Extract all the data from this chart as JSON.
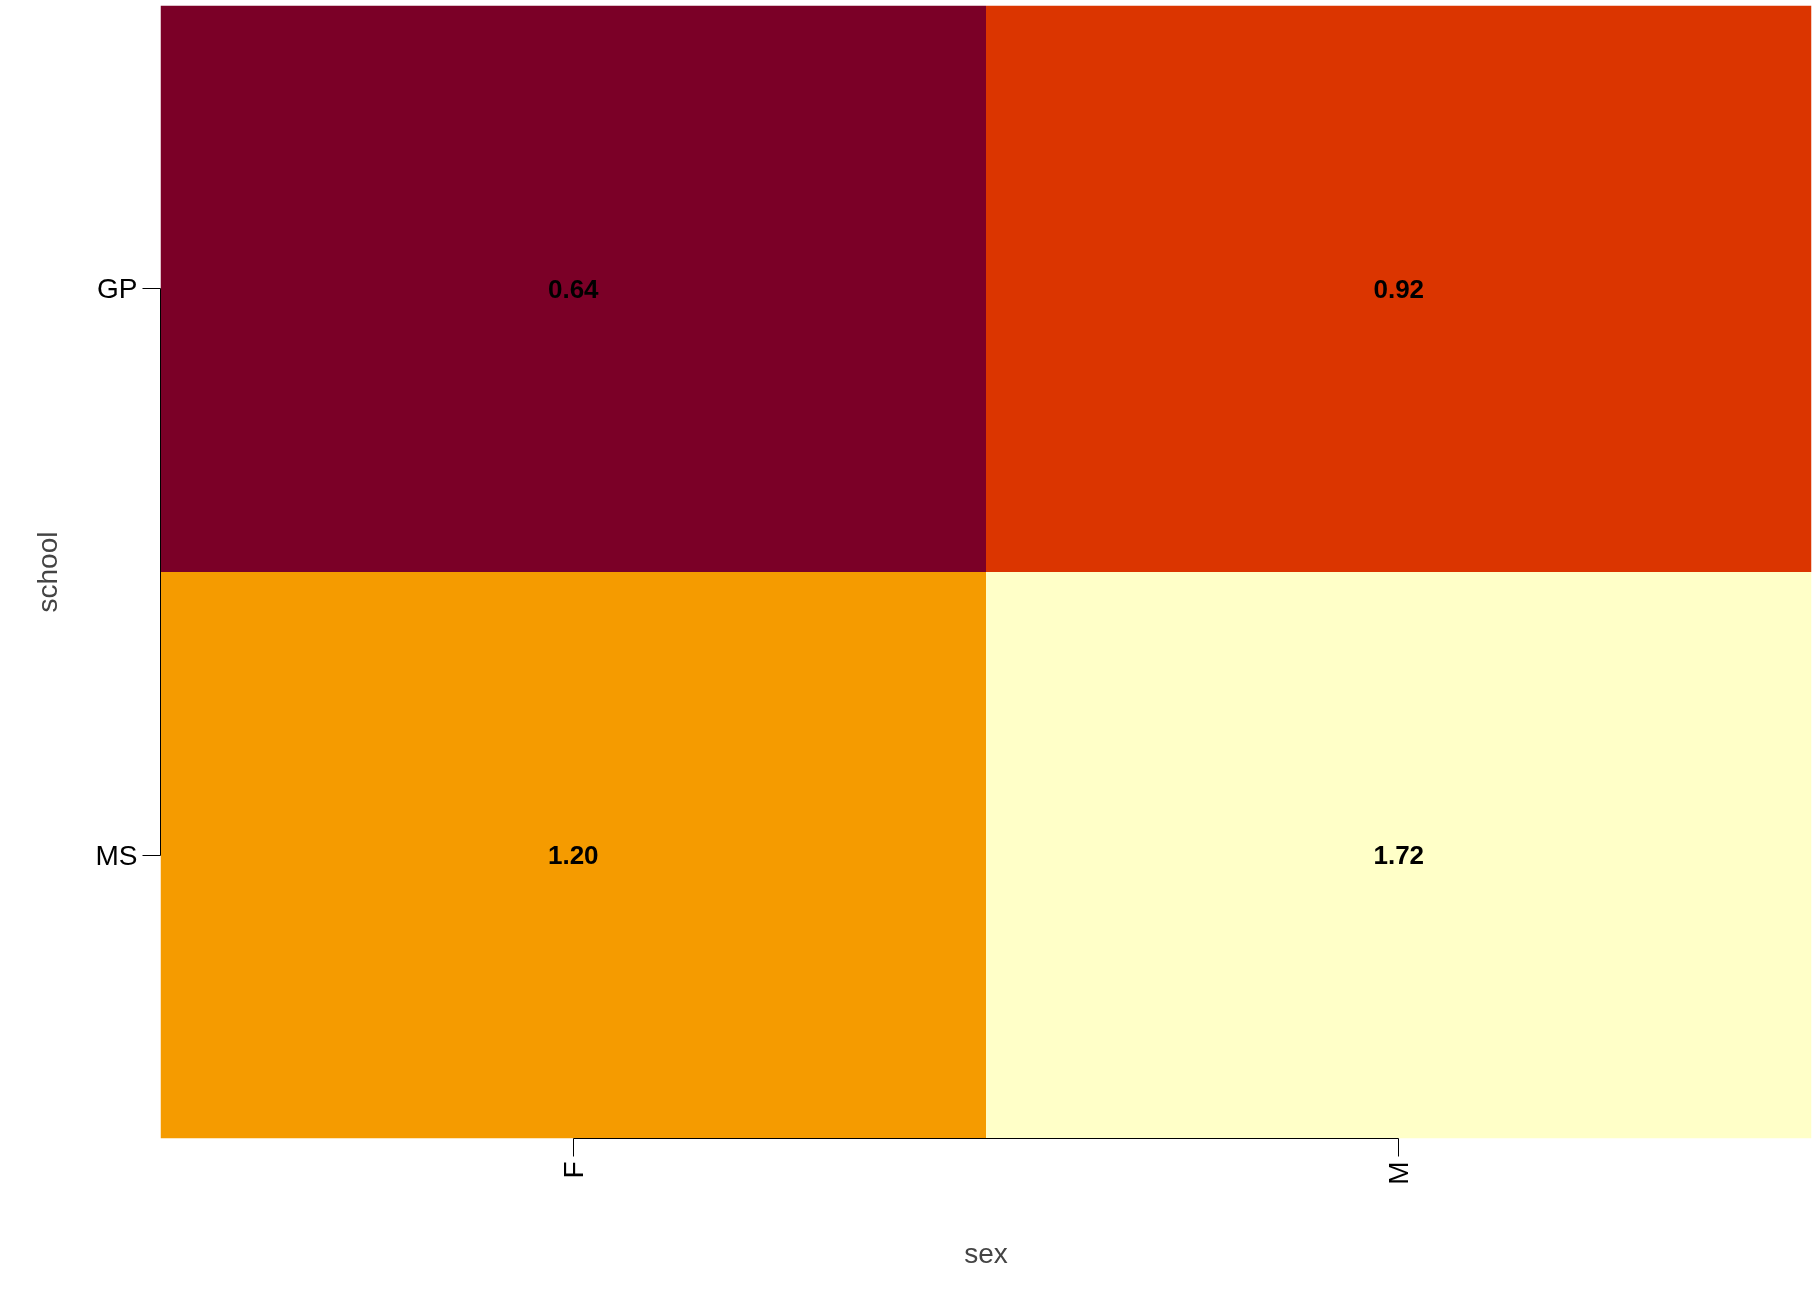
{
  "chart_data": {
    "type": "heatmap",
    "xlabel": "sex",
    "ylabel": "school",
    "categories": [
      "F",
      "M"
    ],
    "y_categories": [
      "GP",
      "MS"
    ],
    "cells": [
      [
        0.64,
        0.92
      ],
      [
        1.2,
        1.72
      ]
    ],
    "colors": [
      "#7b0027",
      "#db3500",
      "#f59b00",
      "#ffffc8"
    ],
    "cell_labels": [
      [
        "0.64",
        "0.92"
      ],
      [
        "1.20",
        "1.72"
      ]
    ],
    "data_labels": true
  }
}
